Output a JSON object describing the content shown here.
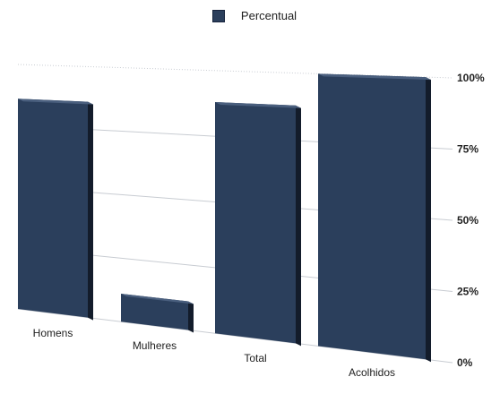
{
  "chart_data": {
    "type": "bar",
    "categories": [
      "Homens",
      "Mulheres",
      "Total",
      "Acolhidos"
    ],
    "series": [
      {
        "name": "Percentual",
        "values": [
          86,
          11,
          88,
          100
        ]
      }
    ],
    "yticks": [
      "0%",
      "25%",
      "50%",
      "75%",
      "100%"
    ],
    "ylim": [
      0,
      100
    ],
    "legend": "top-center",
    "grid": true
  },
  "colors": {
    "bar": "#2b3f5c",
    "bar_side": "#131c2b",
    "bar_top": "#4a5f7e",
    "gridline": "#c8ccd2",
    "legend_swatch": "#2b3f5c"
  }
}
